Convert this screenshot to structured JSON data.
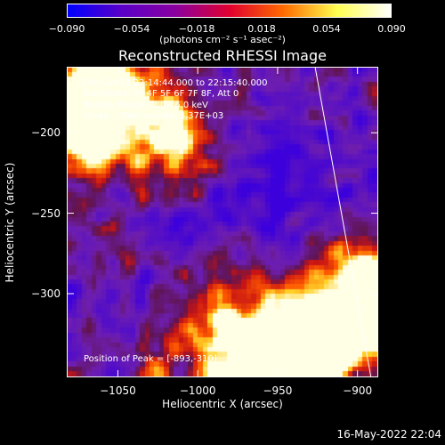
{
  "colorbar": {
    "ticks": [
      "−0.090",
      "−0.054",
      "−0.018",
      "0.018",
      "0.054",
      "0.090"
    ],
    "tick_values": [
      -0.09,
      -0.054,
      -0.018,
      0.018,
      0.054,
      0.09
    ],
    "units": "(photons cm⁻² s⁻¹ asec⁻²)",
    "colors": [
      "#0000ff",
      "#5a00c8",
      "#8a00a0",
      "#e00030",
      "#ff6a00",
      "#ffff50",
      "#ffffff"
    ]
  },
  "title": "Reconstructed RHESSI Image",
  "annotations": {
    "time": "7-Oct-2013 22:14:44.000 to 22:15:40.000",
    "detectors": "Detectors: 3F 4F 5F 6F 7F 8F, Att 0",
    "energy": "Energy Range: 3.0 - 6.0 keV",
    "clean": "Clean    Total counts: 3.37E+03",
    "peak": "Position of Peak = [-893,-310]"
  },
  "axes": {
    "xlabel": "Heliocentric X (arcsec)",
    "ylabel": "Heliocentric Y (arcsec)",
    "xticks": [
      "−1050",
      "−1000",
      "−950",
      "−900"
    ],
    "xtick_values": [
      -1050,
      -1000,
      -950,
      -900
    ],
    "yticks": [
      "−200",
      "−250",
      "−300"
    ],
    "ytick_values": [
      -200,
      -250,
      -300
    ],
    "xlim": [
      -1082,
      -887
    ],
    "ylim": [
      -352,
      -159
    ]
  },
  "limb_line": {
    "x_top": -927,
    "x_bottom": -892
  },
  "datestamp": "16-May-2022 22:04"
}
